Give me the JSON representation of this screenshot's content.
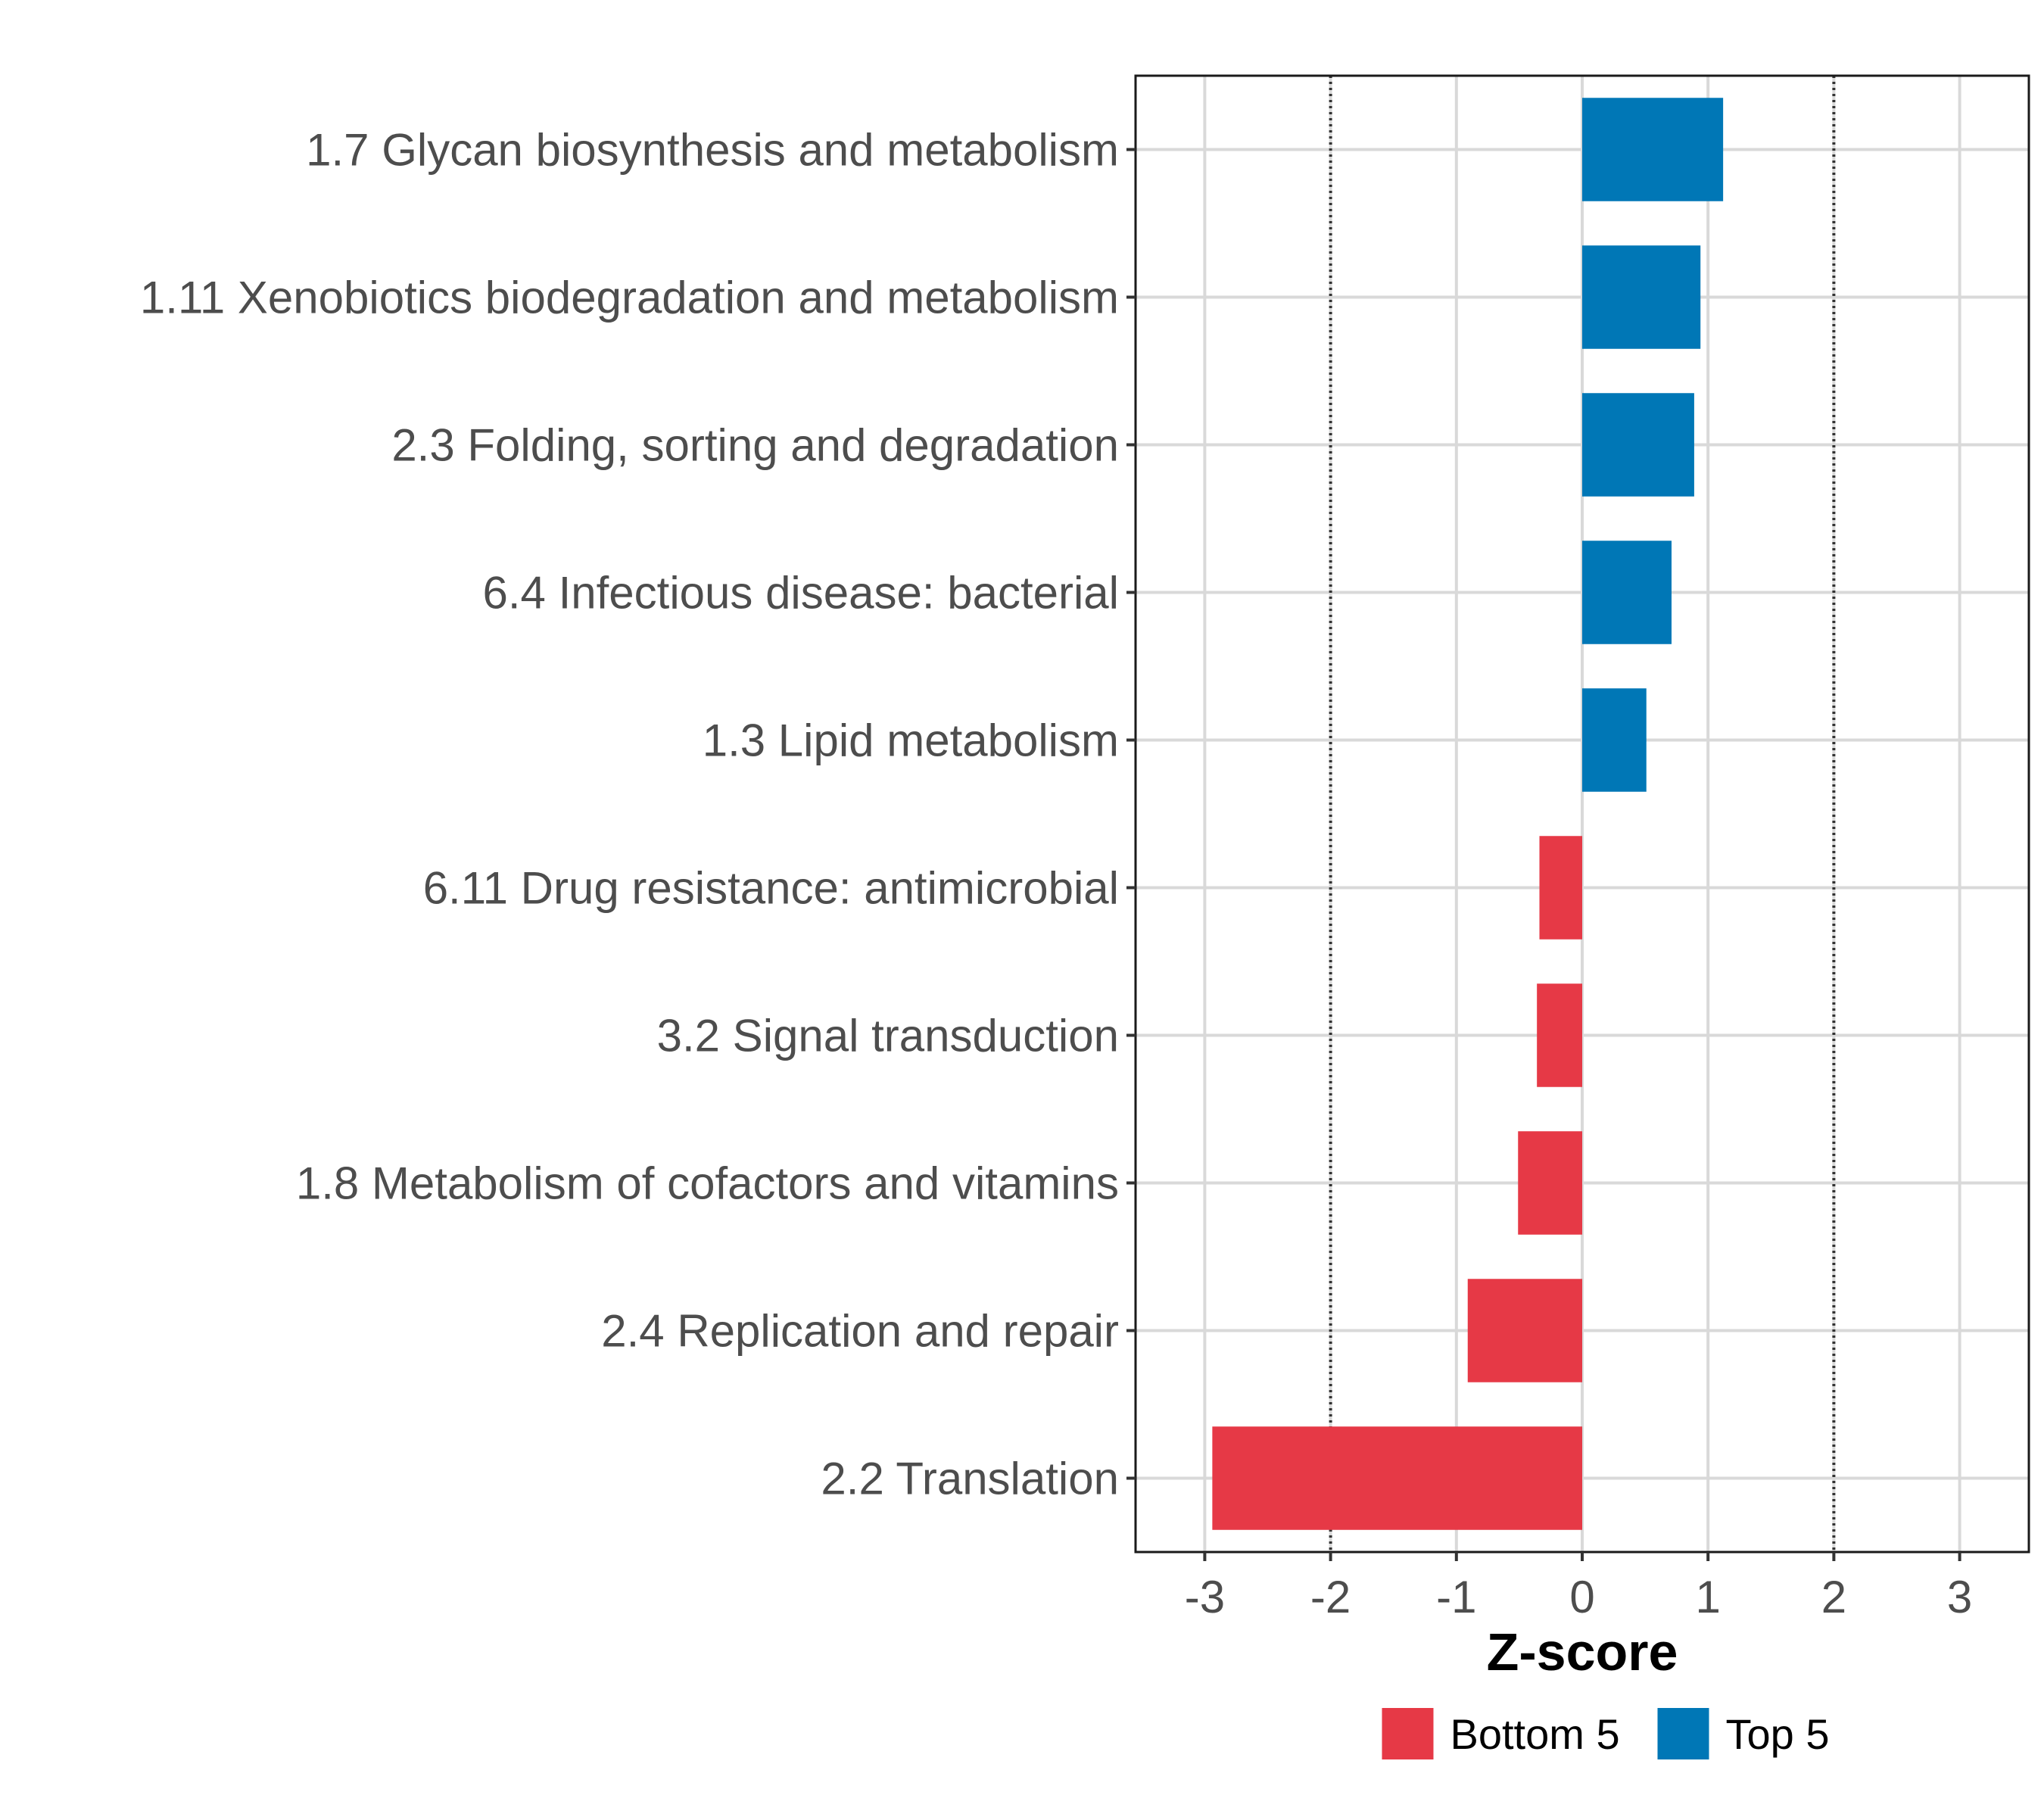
{
  "chart_data": {
    "type": "bar",
    "orientation": "horizontal",
    "title": "",
    "xlabel": "Z-score",
    "ylabel": "",
    "xlim": [
      -3.55,
      3.55
    ],
    "x_ticks": [
      -3,
      -2,
      -1,
      0,
      1,
      2,
      3
    ],
    "x_tick_labels": [
      "-3",
      "-2",
      "-1",
      "0",
      "1",
      "2",
      "3"
    ],
    "reference_lines": [
      -2,
      2
    ],
    "grid": true,
    "categories": [
      "1.7 Glycan biosynthesis and metabolism",
      "1.11 Xenobiotics biodegradation and metabolism",
      "2.3 Folding, sorting and degradation",
      "6.4 Infectious disease: bacterial",
      "1.3 Lipid metabolism",
      "6.11 Drug resistance: antimicrobial",
      "3.2 Signal transduction",
      "1.8 Metabolism of cofactors and vitamins",
      "2.4 Replication and repair",
      "2.2 Translation"
    ],
    "values": [
      1.12,
      0.94,
      0.89,
      0.71,
      0.51,
      -0.34,
      -0.36,
      -0.51,
      -0.91,
      -2.94
    ],
    "groups": [
      "Top 5",
      "Top 5",
      "Top 5",
      "Top 5",
      "Top 5",
      "Bottom 5",
      "Bottom 5",
      "Bottom 5",
      "Bottom 5",
      "Bottom 5"
    ],
    "legend": {
      "position": "bottom",
      "entries": [
        {
          "label": "Bottom 5",
          "color": "#e63946"
        },
        {
          "label": "Top 5",
          "color": "#0077b6"
        }
      ]
    },
    "colors": {
      "Top 5": "#0077b6",
      "Bottom 5": "#e63946"
    }
  }
}
